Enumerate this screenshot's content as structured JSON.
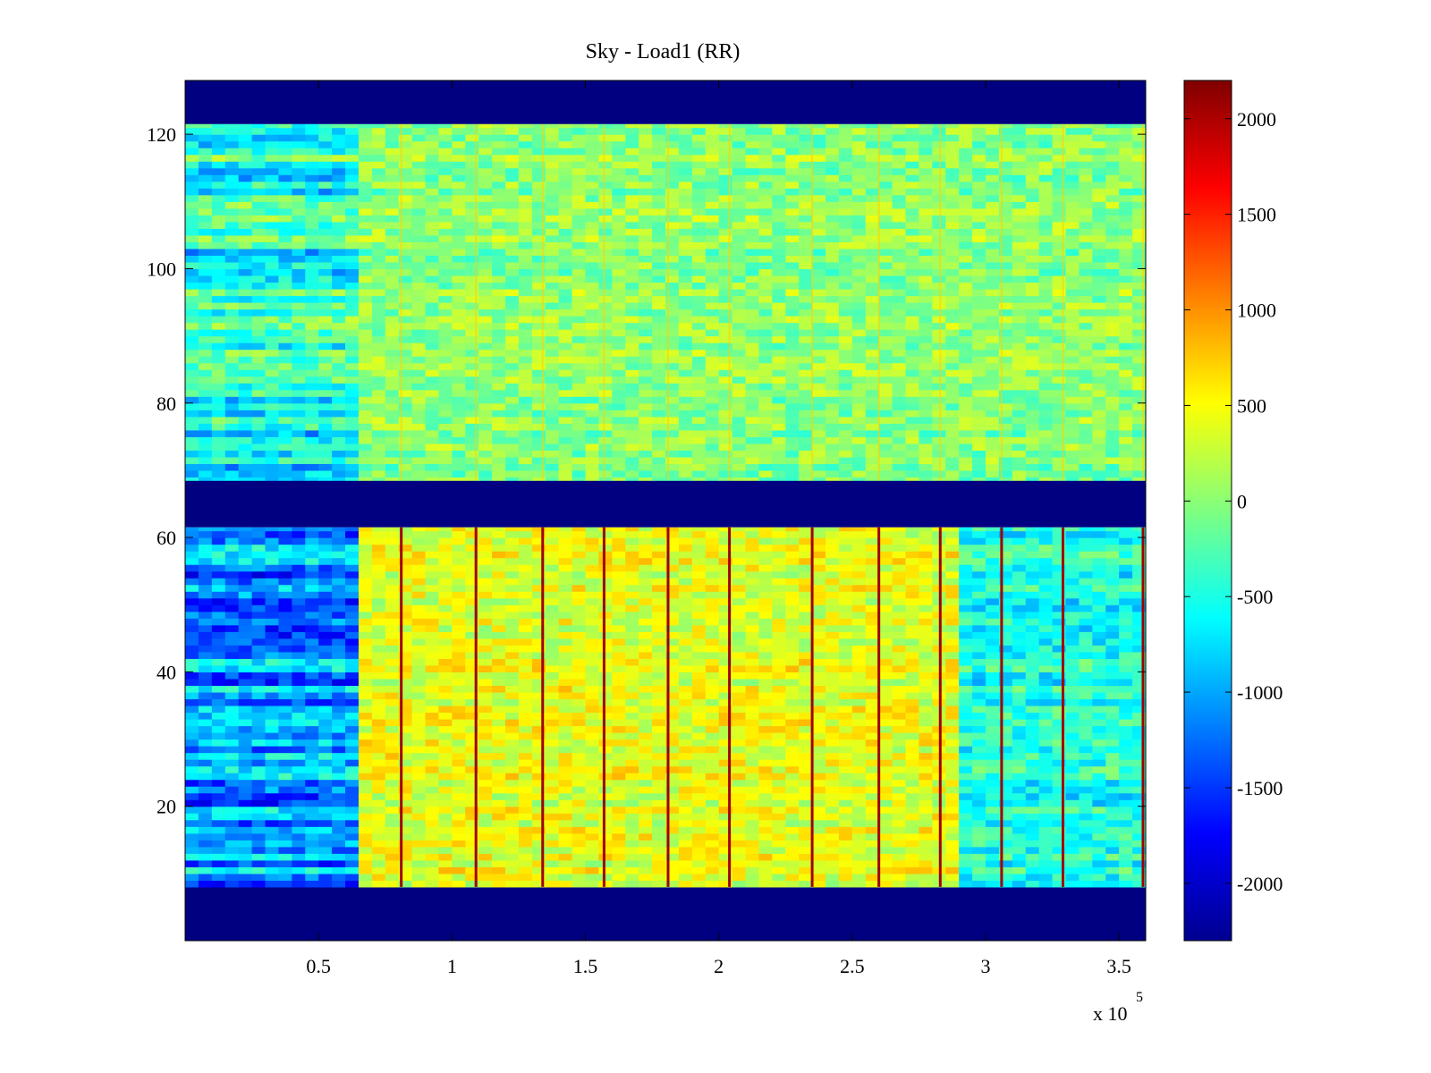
{
  "chart_data": {
    "type": "heatmap",
    "title": "Sky - Load1 (RR)",
    "xlabel": "",
    "ylabel": "",
    "x_multiplier": "x 10",
    "x_multiplier_exponent": "5",
    "xlim": [
      0,
      3.6
    ],
    "ylim": [
      0,
      128
    ],
    "x_ticks": [
      0.5,
      1,
      1.5,
      2,
      2.5,
      3,
      3.5
    ],
    "x_tick_labels": [
      "0.5",
      "1",
      "1.5",
      "2",
      "2.5",
      "3",
      "3.5"
    ],
    "y_ticks": [
      20,
      40,
      60,
      80,
      100,
      120
    ],
    "y_tick_labels": [
      "20",
      "40",
      "60",
      "80",
      "100",
      "120"
    ],
    "colormap": "jet",
    "clim": [
      -2300,
      2200
    ],
    "colorbar_ticks": [
      -2000,
      -1500,
      -1000,
      -500,
      0,
      500,
      1000,
      1500,
      2000
    ],
    "colorbar_tick_labels": [
      "-2000",
      "-1500",
      "-1000",
      "-500",
      "0",
      "500",
      "1000",
      "1500",
      "2000"
    ],
    "masked_bands": [
      {
        "y": [
          0,
          8
        ],
        "value": -2300
      },
      {
        "y": [
          61.5,
          68.5
        ],
        "value": -2300
      },
      {
        "y": [
          121.5,
          128
        ],
        "value": -2300
      }
    ],
    "data_regions": [
      {
        "y": [
          8,
          61.5
        ],
        "x_from": 0.8,
        "mean_value": 400,
        "x_before": 0.65,
        "mean_value_before": -1100,
        "x_after": 2.88,
        "mean_value_after": -500
      },
      {
        "y": [
          68.5,
          121.5
        ],
        "mean_value": 0,
        "x_before": 0.65,
        "mean_value_before": -500
      }
    ],
    "vertical_spike_x": [
      0.81,
      1.09,
      1.34,
      1.57,
      1.81,
      2.04,
      2.35,
      2.6,
      2.83,
      3.06,
      3.29,
      3.59
    ]
  }
}
